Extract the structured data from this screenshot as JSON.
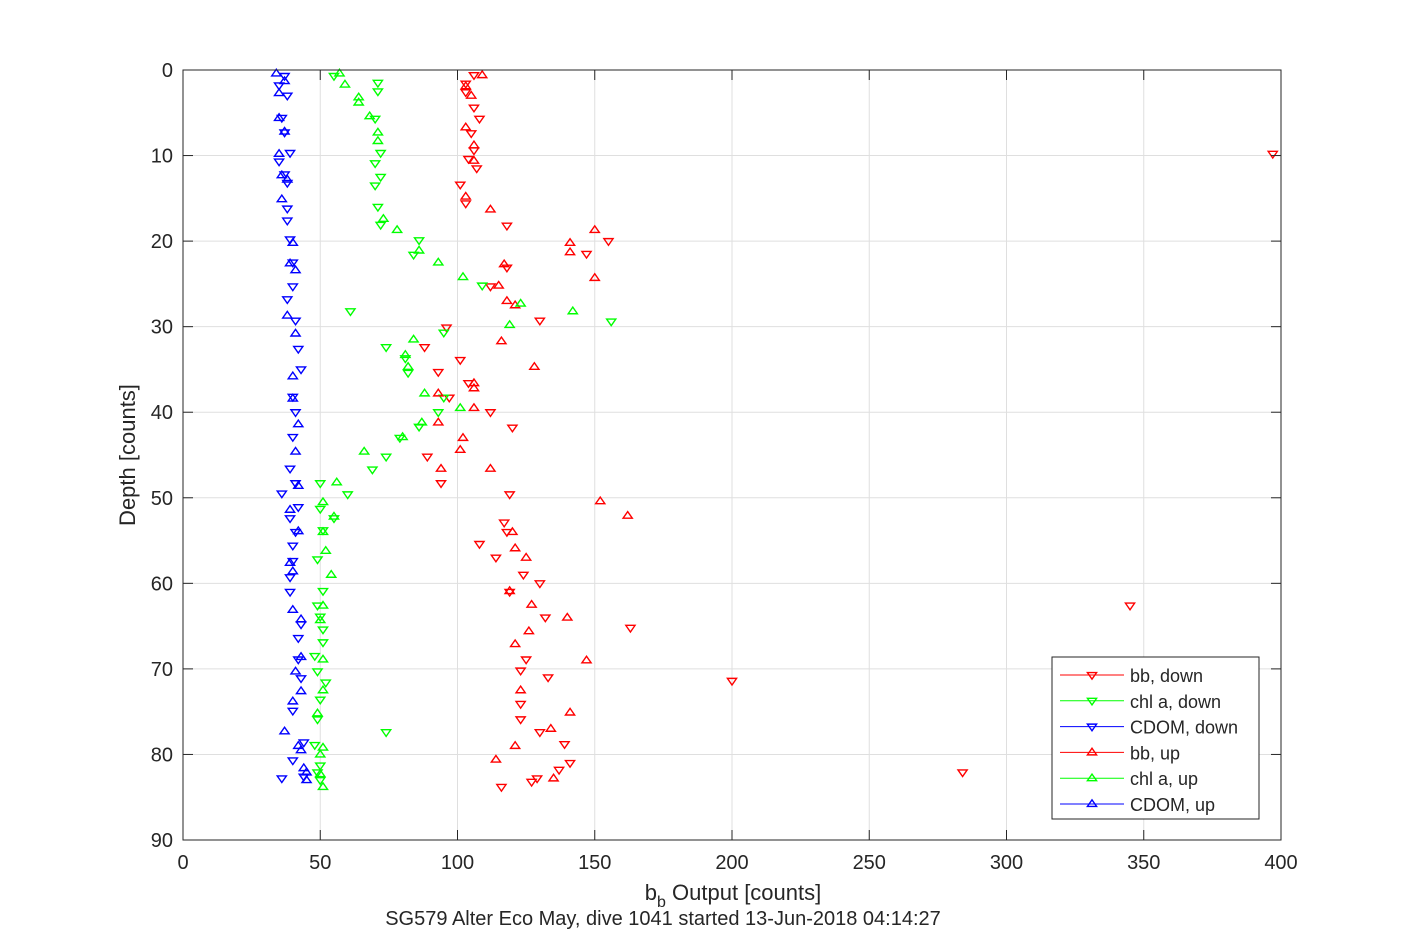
{
  "chart_data": {
    "type": "scatter",
    "xlabel_main": "b",
    "xlabel_sub": "b",
    "xlabel_rest": " Output [counts]",
    "ylabel": "Depth [counts]",
    "caption": "SG579 Alter Eco May, dive 1041 started 13-Jun-2018 04:14:27",
    "xlim": [
      0,
      400
    ],
    "ylim": [
      0,
      90
    ],
    "y_reversed": true,
    "grid": true,
    "legend_position": "bottom-right",
    "x_ticks": [
      "0",
      "50",
      "100",
      "150",
      "200",
      "250",
      "300",
      "350",
      "400"
    ],
    "y_ticks": [
      "0",
      "10",
      "20",
      "30",
      "40",
      "50",
      "60",
      "70",
      "80",
      "90"
    ],
    "series": [
      {
        "name": "bb, down",
        "color": "#ff0000",
        "marker": "triangle-down",
        "points": [
          [
            106,
            0.6
          ],
          [
            103,
            1.6
          ],
          [
            103,
            2.6
          ],
          [
            106,
            4.4
          ],
          [
            108,
            5.7
          ],
          [
            105,
            7.4
          ],
          [
            106,
            9.4
          ],
          [
            104,
            10.4
          ],
          [
            107,
            11.5
          ],
          [
            101,
            13.4
          ],
          [
            103,
            15.6
          ],
          [
            118,
            18.2
          ],
          [
            155,
            20
          ],
          [
            147,
            21.5
          ],
          [
            118,
            23.1
          ],
          [
            112,
            25.3
          ],
          [
            130,
            29.3
          ],
          [
            96,
            30.1
          ],
          [
            88,
            32.4
          ],
          [
            101,
            33.9
          ],
          [
            93,
            35.3
          ],
          [
            104,
            36.6
          ],
          [
            97,
            38.3
          ],
          [
            112,
            40
          ],
          [
            120,
            41.8
          ],
          [
            89,
            45.2
          ],
          [
            94,
            48.3
          ],
          [
            119,
            49.6
          ],
          [
            117,
            52.9
          ],
          [
            118,
            54
          ],
          [
            108,
            55.4
          ],
          [
            114,
            57
          ],
          [
            124,
            59
          ],
          [
            130,
            60
          ],
          [
            119,
            61
          ],
          [
            345,
            62.6
          ],
          [
            132,
            64
          ],
          [
            163,
            65.2
          ],
          [
            125,
            68.9
          ],
          [
            123,
            70.2
          ],
          [
            133,
            71
          ],
          [
            200,
            71.4
          ],
          [
            123,
            74.1
          ],
          [
            123,
            75.9
          ],
          [
            130,
            77.4
          ],
          [
            139,
            78.8
          ],
          [
            141,
            81
          ],
          [
            137,
            81.8
          ],
          [
            284,
            82.1
          ],
          [
            129,
            82.8
          ],
          [
            127,
            83.2
          ],
          [
            116,
            83.8
          ],
          [
            397,
            9.8
          ]
        ]
      },
      {
        "name": "chl a, down",
        "color": "#00ff00",
        "marker": "triangle-down",
        "points": [
          [
            55,
            0.7
          ],
          [
            71,
            1.5
          ],
          [
            71,
            2.5
          ],
          [
            70,
            5.7
          ],
          [
            72,
            9.7
          ],
          [
            70,
            10.9
          ],
          [
            72,
            12.5
          ],
          [
            70,
            13.5
          ],
          [
            71,
            16
          ],
          [
            72,
            18.1
          ],
          [
            86,
            19.9
          ],
          [
            84,
            21.6
          ],
          [
            109,
            25.2
          ],
          [
            61,
            28.2
          ],
          [
            156,
            29.4
          ],
          [
            95,
            30.7
          ],
          [
            74,
            32.4
          ],
          [
            81,
            33.7
          ],
          [
            82,
            35.4
          ],
          [
            95,
            38.3
          ],
          [
            93,
            40
          ],
          [
            86,
            41.7
          ],
          [
            79,
            43
          ],
          [
            74,
            45.2
          ],
          [
            69,
            46.7
          ],
          [
            50,
            48.3
          ],
          [
            60,
            49.6
          ],
          [
            50,
            51.3
          ],
          [
            55,
            52.4
          ],
          [
            51,
            53.8
          ],
          [
            49,
            57.2
          ],
          [
            51,
            60.9
          ],
          [
            49,
            62.6
          ],
          [
            50,
            63.9
          ],
          [
            51,
            65.4
          ],
          [
            51,
            66.9
          ],
          [
            48,
            68.5
          ],
          [
            49,
            70.3
          ],
          [
            52,
            71.6
          ],
          [
            50,
            73.6
          ],
          [
            49,
            75.9
          ],
          [
            74,
            77.4
          ],
          [
            48,
            78.9
          ],
          [
            50,
            81.3
          ],
          [
            49,
            82.1
          ],
          [
            50,
            83
          ]
        ]
      },
      {
        "name": "CDOM, down",
        "color": "#0000ff",
        "marker": "triangle-down",
        "points": [
          [
            37,
            0.7
          ],
          [
            35,
            1.8
          ],
          [
            38,
            3
          ],
          [
            36,
            5.6
          ],
          [
            37,
            7.3
          ],
          [
            39,
            9.7
          ],
          [
            35,
            10.7
          ],
          [
            37,
            12.2
          ],
          [
            38,
            13.2
          ],
          [
            38,
            16.2
          ],
          [
            38,
            17.6
          ],
          [
            39,
            19.8
          ],
          [
            40,
            22.5
          ],
          [
            40,
            25.3
          ],
          [
            38,
            26.8
          ],
          [
            41,
            29.3
          ],
          [
            42,
            32.6
          ],
          [
            43,
            35
          ],
          [
            40,
            38.2
          ],
          [
            41,
            40
          ],
          [
            40,
            42.9
          ],
          [
            39,
            46.6
          ],
          [
            41,
            48.3
          ],
          [
            36,
            49.5
          ],
          [
            42,
            51.1
          ],
          [
            39,
            52.4
          ],
          [
            41,
            54
          ],
          [
            40,
            55.6
          ],
          [
            40,
            57.4
          ],
          [
            39,
            59.3
          ],
          [
            39,
            61
          ],
          [
            43,
            64.8
          ],
          [
            42,
            66.4
          ],
          [
            42,
            68.9
          ],
          [
            43,
            71.1
          ],
          [
            40,
            74.9
          ],
          [
            44,
            78.6
          ],
          [
            40,
            80.7
          ],
          [
            36,
            82.8
          ],
          [
            44,
            82.6
          ]
        ]
      },
      {
        "name": "bb, up",
        "color": "#ff0000",
        "marker": "triangle-up",
        "points": [
          [
            109,
            0.6
          ],
          [
            103,
            1.9
          ],
          [
            105,
            3
          ],
          [
            103,
            6.7
          ],
          [
            106,
            8.8
          ],
          [
            106,
            10.6
          ],
          [
            103,
            14.8
          ],
          [
            112,
            16.3
          ],
          [
            150,
            18.7
          ],
          [
            141,
            20.2
          ],
          [
            141,
            21.3
          ],
          [
            117,
            22.7
          ],
          [
            150,
            24.3
          ],
          [
            115,
            25.2
          ],
          [
            118,
            27
          ],
          [
            121,
            27.5
          ],
          [
            116,
            31.7
          ],
          [
            128,
            34.7
          ],
          [
            106,
            36.6
          ],
          [
            106,
            37.2
          ],
          [
            93,
            37.8
          ],
          [
            106,
            39.5
          ],
          [
            93,
            41.2
          ],
          [
            102,
            43
          ],
          [
            101,
            44.4
          ],
          [
            94,
            46.6
          ],
          [
            112,
            46.6
          ],
          [
            152,
            50.4
          ],
          [
            162,
            52.1
          ],
          [
            120,
            54
          ],
          [
            121,
            55.9
          ],
          [
            125,
            57
          ],
          [
            119,
            60.9
          ],
          [
            127,
            62.5
          ],
          [
            140,
            64
          ],
          [
            126,
            65.6
          ],
          [
            121,
            67.1
          ],
          [
            147,
            69
          ],
          [
            123,
            72.5
          ],
          [
            141,
            75.1
          ],
          [
            134,
            77
          ],
          [
            121,
            79
          ],
          [
            114,
            80.6
          ],
          [
            135,
            82.8
          ]
        ]
      },
      {
        "name": "chl a, up",
        "color": "#00ff00",
        "marker": "triangle-up",
        "points": [
          [
            57,
            0.4
          ],
          [
            59,
            1.7
          ],
          [
            64,
            3.2
          ],
          [
            64,
            3.8
          ],
          [
            68,
            5.4
          ],
          [
            71,
            7.3
          ],
          [
            71,
            8.3
          ],
          [
            73,
            17.4
          ],
          [
            78,
            18.7
          ],
          [
            86,
            21.1
          ],
          [
            93,
            22.5
          ],
          [
            102,
            24.2
          ],
          [
            123,
            27.3
          ],
          [
            142,
            28.2
          ],
          [
            119,
            29.8
          ],
          [
            84,
            31.5
          ],
          [
            81,
            33.3
          ],
          [
            82,
            34.7
          ],
          [
            88,
            37.8
          ],
          [
            101,
            39.5
          ],
          [
            87,
            41.2
          ],
          [
            80,
            42.9
          ],
          [
            66,
            44.6
          ],
          [
            56,
            48.2
          ],
          [
            51,
            50.5
          ],
          [
            55,
            52.2
          ],
          [
            51,
            54
          ],
          [
            52,
            56.2
          ],
          [
            54,
            59
          ],
          [
            51,
            62.6
          ],
          [
            50,
            64.3
          ],
          [
            51,
            68.9
          ],
          [
            51,
            72.5
          ],
          [
            49,
            75.2
          ],
          [
            51,
            79.2
          ],
          [
            50,
            80
          ],
          [
            50,
            82.3
          ],
          [
            51,
            83.8
          ]
        ]
      },
      {
        "name": "CDOM, up",
        "color": "#0000ff",
        "marker": "triangle-up",
        "points": [
          [
            34,
            0.4
          ],
          [
            37,
            1.3
          ],
          [
            35,
            2.7
          ],
          [
            35,
            5.6
          ],
          [
            37,
            7.2
          ],
          [
            35,
            9.8
          ],
          [
            36,
            12.3
          ],
          [
            38,
            12.8
          ],
          [
            36,
            15.1
          ],
          [
            40,
            20.2
          ],
          [
            39,
            22.6
          ],
          [
            41,
            23.4
          ],
          [
            38,
            28.7
          ],
          [
            41,
            30.8
          ],
          [
            40,
            35.8
          ],
          [
            40,
            38.4
          ],
          [
            42,
            41.4
          ],
          [
            41,
            44.6
          ],
          [
            42,
            48.6
          ],
          [
            39,
            51.4
          ],
          [
            42,
            53.9
          ],
          [
            39,
            57.6
          ],
          [
            40,
            58.6
          ],
          [
            40,
            63.1
          ],
          [
            43,
            64.2
          ],
          [
            43,
            68.6
          ],
          [
            41,
            70.3
          ],
          [
            43,
            72.6
          ],
          [
            40,
            73.8
          ],
          [
            37,
            77.3
          ],
          [
            42,
            79
          ],
          [
            43,
            79.5
          ],
          [
            44,
            81.6
          ],
          [
            45,
            82.1
          ],
          [
            45,
            83
          ]
        ]
      }
    ]
  }
}
